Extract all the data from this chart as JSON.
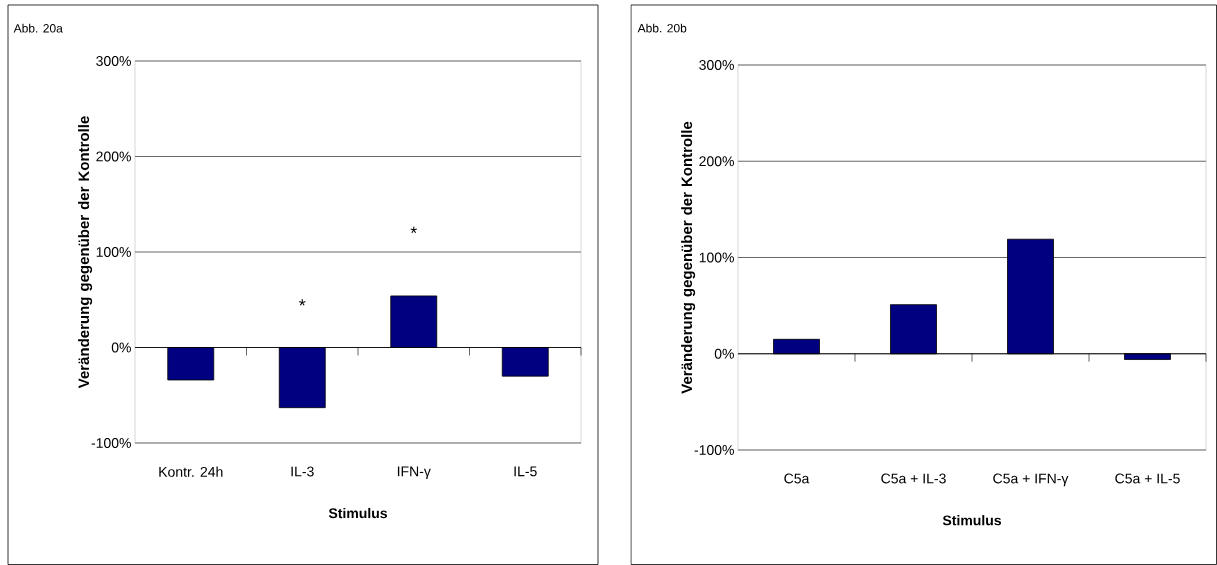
{
  "chart_data": [
    {
      "type": "bar",
      "title": "Abb. 20a",
      "xlabel": "Stimulus",
      "ylabel": "Veränderung gegenüber der Kontrolle",
      "categories": [
        "Kontr. 24h",
        "IL-3",
        "IFN-γ",
        "IL-5"
      ],
      "values": [
        -34,
        -63,
        54,
        -30
      ],
      "color": "#000080",
      "ylim": [
        -100,
        300
      ],
      "yticks": [
        {
          "value": -100,
          "label": "-100%"
        },
        {
          "value": 0,
          "label": "0%"
        },
        {
          "value": 100,
          "label": "100%"
        },
        {
          "value": 200,
          "label": "200%"
        },
        {
          "value": 300,
          "label": "300%"
        }
      ],
      "grid": "y",
      "annotations": [
        "*",
        "*"
      ]
    },
    {
      "type": "bar",
      "title": "Abb. 20b",
      "xlabel": "Stimulus",
      "ylabel": "Veränderung gegenüber der Kontrolle",
      "categories": [
        "C5a",
        "C5a + IL-3",
        "C5a + IFN-γ",
        "C5a + IL-5"
      ],
      "values": [
        15,
        51,
        119,
        -6
      ],
      "color": "#000080",
      "ylim": [
        -100,
        300
      ],
      "yticks": [
        {
          "value": -100,
          "label": "-100%"
        },
        {
          "value": 0,
          "label": "0%"
        },
        {
          "value": 100,
          "label": "100%"
        },
        {
          "value": 200,
          "label": "200%"
        },
        {
          "value": 300,
          "label": "300%"
        }
      ],
      "grid": "y"
    }
  ]
}
